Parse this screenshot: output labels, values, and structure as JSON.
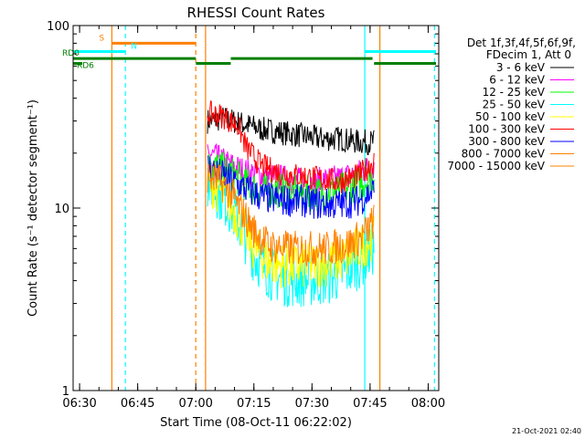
{
  "chart_data": {
    "type": "line",
    "title": "RHESSI Count Rates",
    "xlabel": "Start Time (08-Oct-11 06:22:02)",
    "ylabel": "Count Rate (s⁻¹ detector segment⁻¹)",
    "yscale": "log",
    "ylim": [
      1,
      100
    ],
    "xlim_minutes": [
      6.3,
      100.7
    ],
    "x_ticks": [
      {
        "minute": 7.97,
        "label": "06:30"
      },
      {
        "minute": 22.97,
        "label": "06:45"
      },
      {
        "minute": 37.97,
        "label": "07:00"
      },
      {
        "minute": 52.97,
        "label": "07:15"
      },
      {
        "minute": 67.97,
        "label": "07:30"
      },
      {
        "minute": 82.97,
        "label": "07:45"
      },
      {
        "minute": 97.97,
        "label": "08:00"
      }
    ],
    "y_ticks": [
      {
        "value": 1,
        "label": "1"
      },
      {
        "value": 10,
        "label": "10"
      },
      {
        "value": 100,
        "label": "100"
      }
    ],
    "legend_header": [
      "Det 1f,3f,4f,5f,6f,9f,",
      "FDecim 1, Att 0"
    ],
    "series": [
      {
        "name": "3 - 6 keV",
        "color": "#000000",
        "points": [
          [
            41,
            30
          ],
          [
            45,
            31
          ],
          [
            50,
            29
          ],
          [
            55,
            27
          ],
          [
            60,
            26
          ],
          [
            65,
            25
          ],
          [
            70,
            24
          ],
          [
            75,
            24
          ],
          [
            80,
            23
          ],
          [
            84,
            23
          ]
        ],
        "noise": 0.07
      },
      {
        "name": "6 - 12 keV",
        "color": "#ff00ff",
        "points": [
          [
            41,
            20
          ],
          [
            45,
            18
          ],
          [
            50,
            16
          ],
          [
            55,
            15
          ],
          [
            60,
            14.5
          ],
          [
            65,
            14
          ],
          [
            70,
            14
          ],
          [
            75,
            14.5
          ],
          [
            80,
            15.5
          ],
          [
            84,
            17
          ]
        ],
        "noise": 0.08
      },
      {
        "name": "12 - 25 keV",
        "color": "#00ff00",
        "points": [
          [
            41,
            17
          ],
          [
            44,
            16.5
          ],
          [
            48,
            15
          ],
          [
            52,
            13
          ],
          [
            56,
            12.5
          ],
          [
            60,
            12.5
          ],
          [
            65,
            12
          ],
          [
            70,
            12
          ],
          [
            75,
            12.5
          ],
          [
            80,
            13.5
          ],
          [
            84,
            15
          ]
        ],
        "noise": 0.1
      },
      {
        "name": "25 - 50 keV",
        "color": "#00ffff",
        "points": [
          [
            41,
            14
          ],
          [
            44,
            12
          ],
          [
            47,
            10
          ],
          [
            50,
            7.5
          ],
          [
            53,
            5.5
          ],
          [
            57,
            4.4
          ],
          [
            62,
            4
          ],
          [
            67,
            4
          ],
          [
            72,
            4.1
          ],
          [
            77,
            4.5
          ],
          [
            81,
            5.2
          ],
          [
            84,
            6
          ]
        ],
        "noise": 0.15
      },
      {
        "name": "50 - 100 keV",
        "color": "#ffff00",
        "points": [
          [
            41,
            14
          ],
          [
            44,
            12.5
          ],
          [
            47,
            10.5
          ],
          [
            50,
            8
          ],
          [
            53,
            6
          ],
          [
            57,
            5
          ],
          [
            62,
            4.8
          ],
          [
            67,
            4.8
          ],
          [
            72,
            5
          ],
          [
            77,
            5.4
          ],
          [
            81,
            6.2
          ],
          [
            84,
            7
          ]
        ],
        "noise": 0.13
      },
      {
        "name": "100 - 300 keV",
        "color": "#ff0000",
        "points": [
          [
            41,
            33
          ],
          [
            45,
            32
          ],
          [
            49,
            28
          ],
          [
            51,
            21.5
          ],
          [
            55,
            17
          ],
          [
            60,
            15.5
          ],
          [
            65,
            15
          ],
          [
            70,
            14.5
          ],
          [
            75,
            14
          ],
          [
            80,
            15
          ],
          [
            84,
            18
          ]
        ],
        "noise": 0.07
      },
      {
        "name": "300 - 800 keV",
        "color": "#0000ff",
        "points": [
          [
            41,
            17
          ],
          [
            45,
            15
          ],
          [
            50,
            13
          ],
          [
            55,
            11.5
          ],
          [
            60,
            11
          ],
          [
            65,
            11
          ],
          [
            70,
            10.5
          ],
          [
            75,
            10.5
          ],
          [
            80,
            11
          ],
          [
            84,
            12.5
          ]
        ],
        "noise": 0.09
      },
      {
        "name": "800 - 7000 keV",
        "color": "#ff8000",
        "points": [
          [
            41,
            15
          ],
          [
            44,
            14
          ],
          [
            47,
            12
          ],
          [
            50,
            9.5
          ],
          [
            53,
            7.5
          ],
          [
            57,
            6.2
          ],
          [
            62,
            6
          ],
          [
            67,
            6
          ],
          [
            72,
            6
          ],
          [
            77,
            6.3
          ],
          [
            81,
            7
          ],
          [
            84,
            8.5
          ]
        ],
        "noise": 0.1
      },
      {
        "name": "7000 - 15000 keV",
        "color": "#ff8000",
        "points": [],
        "noise": 0
      }
    ],
    "attenuator_bars": [
      {
        "label": "S",
        "color": "#ff8000",
        "value": 80,
        "segments": [
          [
            16.3,
            37.97
          ]
        ]
      },
      {
        "label": "N",
        "color": "#00ffff",
        "value": 72,
        "segments": [
          [
            6.3,
            19.8
          ],
          [
            81.6,
            100
          ]
        ]
      },
      {
        "label": "RD0",
        "color": "#008000",
        "value": 66,
        "segments": [
          [
            6.3,
            37.97
          ],
          [
            47,
            83.6
          ]
        ]
      },
      {
        "label": "RD6",
        "color": "#008000",
        "value": 62,
        "segments": [
          [
            6.3,
            8.7
          ],
          [
            38,
            47
          ],
          [
            84,
            100
          ]
        ]
      }
    ],
    "vertical_markers": [
      {
        "minute": 16.3,
        "color": "#ff8000",
        "style": "solid"
      },
      {
        "minute": 19.8,
        "color": "#00ffff",
        "style": "dashed"
      },
      {
        "minute": 37.97,
        "color": "#ff8000",
        "style": "dashed"
      },
      {
        "minute": 40.5,
        "color": "#ff8000",
        "style": "solid"
      },
      {
        "minute": 81.6,
        "color": "#00ffff",
        "style": "solid"
      },
      {
        "minute": 85.5,
        "color": "#ff8000",
        "style": "solid"
      },
      {
        "minute": 99.6,
        "color": "#00ffff",
        "style": "dashed"
      }
    ],
    "footer_date": "21-Oct-2021 02:40"
  }
}
